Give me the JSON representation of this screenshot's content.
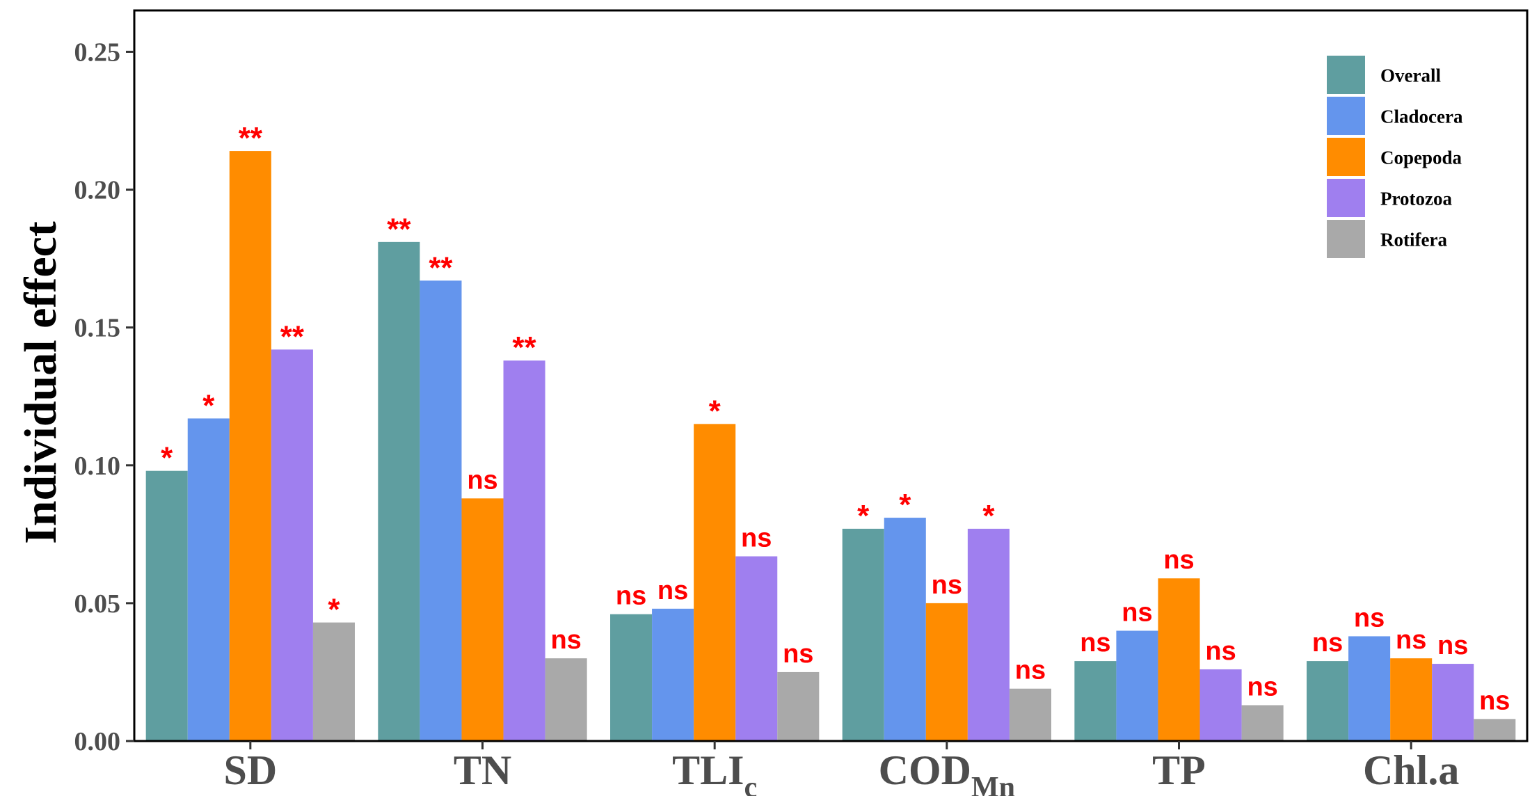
{
  "chart_data": {
    "type": "bar",
    "title": "",
    "xlabel": "",
    "ylabel": "Individual effect",
    "ylim": [
      0,
      0.265
    ],
    "yticks": [
      0.0,
      0.05,
      0.1,
      0.15,
      0.2,
      0.25
    ],
    "ytick_labels": [
      "0.00",
      "0.05",
      "0.10",
      "0.15",
      "0.20",
      "0.25"
    ],
    "grid": false,
    "legend_position": "top-right",
    "categories": [
      {
        "main": "SD",
        "sub": ""
      },
      {
        "main": "TN",
        "sub": ""
      },
      {
        "main": "TLI",
        "sub": "c"
      },
      {
        "main": "COD",
        "sub": "Mn"
      },
      {
        "main": "TP",
        "sub": ""
      },
      {
        "main": "Chl.a",
        "sub": ""
      }
    ],
    "series": [
      {
        "name": "Overall",
        "color": "#5f9ea0",
        "values": [
          0.098,
          0.181,
          0.046,
          0.077,
          0.029,
          0.029
        ],
        "labels": [
          "*",
          "**",
          "ns",
          "*",
          "ns",
          "ns"
        ]
      },
      {
        "name": "Cladocera",
        "color": "#6495ed",
        "values": [
          0.117,
          0.167,
          0.048,
          0.081,
          0.04,
          0.038
        ],
        "labels": [
          "*",
          "**",
          "ns",
          "*",
          "ns",
          "ns"
        ]
      },
      {
        "name": "Copepoda",
        "color": "#ff8c00",
        "values": [
          0.214,
          0.088,
          0.115,
          0.05,
          0.059,
          0.03
        ],
        "labels": [
          "**",
          "ns",
          "*",
          "ns",
          "ns",
          "ns"
        ]
      },
      {
        "name": "Protozoa",
        "color": "#9f7fef",
        "values": [
          0.142,
          0.138,
          0.067,
          0.077,
          0.026,
          0.028
        ],
        "labels": [
          "**",
          "**",
          "ns",
          "*",
          "ns",
          "ns"
        ]
      },
      {
        "name": "Rotifera",
        "color": "#a9a9a9",
        "values": [
          0.043,
          0.03,
          0.025,
          0.019,
          0.013,
          0.008
        ],
        "labels": [
          "*",
          "ns",
          "ns",
          "ns",
          "ns",
          "ns"
        ]
      }
    ]
  }
}
